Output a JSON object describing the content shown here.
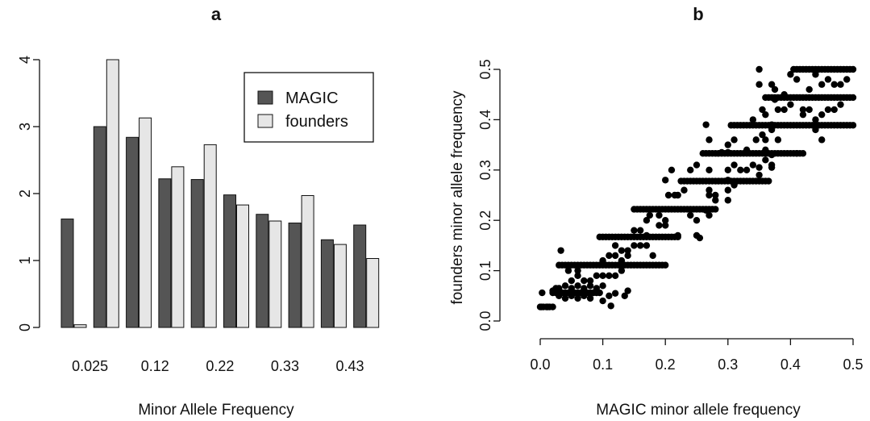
{
  "chart_data": [
    {
      "type": "bar",
      "title": "a",
      "xlabel": "Minor Allele Frequency",
      "ylabel": "",
      "ylim": [
        0,
        4
      ],
      "yticks": [
        0,
        1,
        2,
        3,
        4
      ],
      "xtick_labels": [
        "0.025",
        "0.12",
        "0.22",
        "0.33",
        "0.43"
      ],
      "categories": [
        "0.025",
        "",
        "0.12",
        "",
        "0.22",
        "",
        "0.33",
        "",
        "0.43",
        ""
      ],
      "legend_position": "top-right",
      "series": [
        {
          "name": "MAGIC",
          "color": "#555555",
          "values": [
            1.62,
            3.0,
            2.84,
            2.22,
            2.21,
            1.98,
            1.69,
            1.56,
            1.31,
            1.53
          ]
        },
        {
          "name": "founders",
          "color": "#e6e6e6",
          "values": [
            0.04,
            4.0,
            3.13,
            2.4,
            2.73,
            1.83,
            1.59,
            1.97,
            1.24,
            1.03
          ]
        }
      ]
    },
    {
      "type": "scatter",
      "title": "b",
      "xlabel": "MAGIC minor allele frequency",
      "ylabel": "founders minor allele frequency",
      "xlim": [
        0,
        0.5
      ],
      "ylim": [
        0,
        0.5
      ],
      "xticks": [
        "0.0",
        "0.1",
        "0.2",
        "0.3",
        "0.4",
        "0.5"
      ],
      "yticks": [
        "0.0",
        "0.1",
        "0.2",
        "0.3",
        "0.4",
        "0.5"
      ],
      "point_color": "#000000",
      "bands": [
        {
          "y": 0.028,
          "x_from": 0.0,
          "x_to": 0.02
        },
        {
          "y": 0.056,
          "x_from": 0.02,
          "x_to": 0.095
        },
        {
          "y": 0.111,
          "x_from": 0.03,
          "x_to": 0.2
        },
        {
          "y": 0.167,
          "x_from": 0.095,
          "x_to": 0.22
        },
        {
          "y": 0.222,
          "x_from": 0.15,
          "x_to": 0.28
        },
        {
          "y": 0.278,
          "x_from": 0.225,
          "x_to": 0.365
        },
        {
          "y": 0.333,
          "x_from": 0.26,
          "x_to": 0.42
        },
        {
          "y": 0.389,
          "x_from": 0.305,
          "x_to": 0.5
        },
        {
          "y": 0.444,
          "x_from": 0.36,
          "x_to": 0.5
        },
        {
          "y": 0.5,
          "x_from": 0.405,
          "x_to": 0.5
        }
      ],
      "extra_points": [
        [
          0.002,
          0.028
        ],
        [
          0.012,
          0.028
        ],
        [
          0.113,
          0.03
        ],
        [
          0.033,
          0.14
        ],
        [
          0.003,
          0.056
        ],
        [
          0.22,
          0.17
        ],
        [
          0.25,
          0.17
        ],
        [
          0.255,
          0.165
        ],
        [
          0.265,
          0.22
        ],
        [
          0.265,
          0.39
        ],
        [
          0.27,
          0.36
        ],
        [
          0.29,
          0.335
        ],
        [
          0.3,
          0.335
        ],
        [
          0.41,
          0.333
        ],
        [
          0.35,
          0.47
        ],
        [
          0.37,
          0.47
        ],
        [
          0.375,
          0.44
        ],
        [
          0.38,
          0.42
        ],
        [
          0.37,
          0.39
        ],
        [
          0.355,
          0.37
        ],
        [
          0.36,
          0.36
        ],
        [
          0.345,
          0.36
        ],
        [
          0.355,
          0.42
        ],
        [
          0.36,
          0.41
        ],
        [
          0.34,
          0.4
        ],
        [
          0.31,
          0.36
        ],
        [
          0.3,
          0.35
        ],
        [
          0.375,
          0.46
        ],
        [
          0.35,
          0.5
        ],
        [
          0.4,
          0.49
        ],
        [
          0.41,
          0.48
        ],
        [
          0.42,
          0.42
        ],
        [
          0.42,
          0.41
        ],
        [
          0.37,
          0.38
        ],
        [
          0.32,
          0.3
        ],
        [
          0.31,
          0.31
        ],
        [
          0.33,
          0.3
        ],
        [
          0.3,
          0.3
        ],
        [
          0.34,
          0.31
        ],
        [
          0.35,
          0.29
        ],
        [
          0.36,
          0.32
        ],
        [
          0.27,
          0.25
        ],
        [
          0.27,
          0.26
        ],
        [
          0.28,
          0.25
        ],
        [
          0.3,
          0.26
        ],
        [
          0.28,
          0.24
        ],
        [
          0.3,
          0.24
        ],
        [
          0.27,
          0.3
        ],
        [
          0.25,
          0.31
        ],
        [
          0.24,
          0.3
        ],
        [
          0.2,
          0.28
        ],
        [
          0.21,
          0.3
        ],
        [
          0.205,
          0.25
        ],
        [
          0.215,
          0.25
        ],
        [
          0.22,
          0.25
        ],
        [
          0.23,
          0.26
        ],
        [
          0.2,
          0.2
        ],
        [
          0.19,
          0.19
        ],
        [
          0.2,
          0.19
        ],
        [
          0.17,
          0.2
        ],
        [
          0.175,
          0.21
        ],
        [
          0.19,
          0.21
        ],
        [
          0.24,
          0.21
        ],
        [
          0.25,
          0.2
        ],
        [
          0.27,
          0.21
        ],
        [
          0.15,
          0.18
        ],
        [
          0.16,
          0.18
        ],
        [
          0.15,
          0.15
        ],
        [
          0.16,
          0.15
        ],
        [
          0.17,
          0.15
        ],
        [
          0.13,
          0.14
        ],
        [
          0.14,
          0.13
        ],
        [
          0.12,
          0.13
        ],
        [
          0.11,
          0.13
        ],
        [
          0.13,
          0.12
        ],
        [
          0.14,
          0.14
        ],
        [
          0.1,
          0.12
        ],
        [
          0.12,
          0.15
        ],
        [
          0.18,
          0.13
        ],
        [
          0.17,
          0.17
        ],
        [
          0.11,
          0.09
        ],
        [
          0.12,
          0.09
        ],
        [
          0.13,
          0.1
        ],
        [
          0.1,
          0.09
        ],
        [
          0.08,
          0.08
        ],
        [
          0.09,
          0.09
        ],
        [
          0.06,
          0.09
        ],
        [
          0.07,
          0.08
        ],
        [
          0.05,
          0.08
        ],
        [
          0.04,
          0.07
        ],
        [
          0.03,
          0.065
        ],
        [
          0.05,
          0.065
        ],
        [
          0.06,
          0.07
        ],
        [
          0.07,
          0.065
        ],
        [
          0.08,
          0.07
        ],
        [
          0.09,
          0.065
        ],
        [
          0.1,
          0.07
        ],
        [
          0.03,
          0.05
        ],
        [
          0.04,
          0.045
        ],
        [
          0.05,
          0.05
        ],
        [
          0.06,
          0.045
        ],
        [
          0.07,
          0.05
        ],
        [
          0.08,
          0.045
        ],
        [
          0.11,
          0.05
        ],
        [
          0.12,
          0.055
        ],
        [
          0.135,
          0.05
        ],
        [
          0.14,
          0.06
        ],
        [
          0.1,
          0.04
        ],
        [
          0.045,
          0.1
        ],
        [
          0.06,
          0.1
        ],
        [
          0.025,
          0.065
        ],
        [
          0.02,
          0.06
        ],
        [
          0.44,
          0.38
        ],
        [
          0.45,
          0.36
        ],
        [
          0.43,
          0.46
        ],
        [
          0.45,
          0.47
        ],
        [
          0.46,
          0.48
        ],
        [
          0.47,
          0.47
        ],
        [
          0.48,
          0.47
        ],
        [
          0.49,
          0.48
        ],
        [
          0.44,
          0.49
        ],
        [
          0.48,
          0.43
        ],
        [
          0.47,
          0.42
        ],
        [
          0.46,
          0.42
        ],
        [
          0.45,
          0.41
        ],
        [
          0.44,
          0.4
        ],
        [
          0.43,
          0.42
        ],
        [
          0.4,
          0.43
        ],
        [
          0.39,
          0.45
        ],
        [
          0.39,
          0.42
        ],
        [
          0.38,
          0.36
        ],
        [
          0.37,
          0.33
        ],
        [
          0.36,
          0.34
        ],
        [
          0.33,
          0.34
        ],
        [
          0.35,
          0.305
        ],
        [
          0.37,
          0.305
        ],
        [
          0.37,
          0.31
        ],
        [
          0.3,
          0.28
        ],
        [
          0.31,
          0.27
        ]
      ]
    }
  ]
}
